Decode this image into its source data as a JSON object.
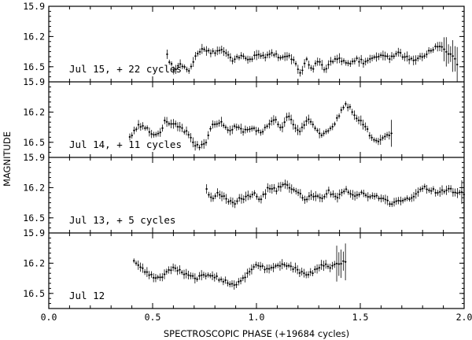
{
  "chart_data": {
    "type": "scatter",
    "xlabel": "SPECTROSCOPIC PHASE (+19684 cycles)",
    "ylabel": "MAGNITUDE",
    "xlim": [
      0.0,
      2.0
    ],
    "x_ticks": [
      "0.0",
      "0.5",
      "1.0",
      "1.5",
      "2.0"
    ],
    "ylim": [
      16.65,
      15.9
    ],
    "y_tick_labels": [
      "15.9",
      "16.2",
      "16.5"
    ],
    "y_ticks": [
      15.9,
      16.2,
      16.5
    ],
    "y_axis_inverted": true,
    "panels": [
      {
        "label": "Jul 15, + 22 cycles",
        "knots": [
          [
            0.57,
            16.39
          ],
          [
            0.6,
            16.53
          ],
          [
            0.64,
            16.47
          ],
          [
            0.67,
            16.55
          ],
          [
            0.7,
            16.42
          ],
          [
            0.74,
            16.3
          ],
          [
            0.78,
            16.36
          ],
          [
            0.83,
            16.33
          ],
          [
            0.88,
            16.43
          ],
          [
            0.93,
            16.4
          ],
          [
            0.97,
            16.43
          ],
          [
            1.0,
            16.37
          ],
          [
            1.04,
            16.4
          ],
          [
            1.08,
            16.37
          ],
          [
            1.11,
            16.41
          ],
          [
            1.15,
            16.38
          ],
          [
            1.18,
            16.44
          ],
          [
            1.21,
            16.58
          ],
          [
            1.24,
            16.43
          ],
          [
            1.27,
            16.52
          ],
          [
            1.3,
            16.42
          ],
          [
            1.33,
            16.53
          ],
          [
            1.36,
            16.44
          ],
          [
            1.4,
            16.43
          ],
          [
            1.44,
            16.48
          ],
          [
            1.48,
            16.42
          ],
          [
            1.52,
            16.46
          ],
          [
            1.56,
            16.4
          ],
          [
            1.6,
            16.38
          ],
          [
            1.64,
            16.41
          ],
          [
            1.68,
            16.36
          ],
          [
            1.72,
            16.41
          ],
          [
            1.76,
            16.44
          ],
          [
            1.8,
            16.4
          ],
          [
            1.85,
            16.32
          ],
          [
            1.88,
            16.3
          ],
          [
            1.92,
            16.36
          ],
          [
            1.95,
            16.42
          ],
          [
            1.97,
            16.48
          ]
        ],
        "step": 0.0105,
        "bad_x": [
          1.9,
          2.0
        ]
      },
      {
        "label": "Jul 14, + 11 cycles",
        "knots": [
          [
            0.39,
            16.45
          ],
          [
            0.43,
            16.34
          ],
          [
            0.47,
            16.36
          ],
          [
            0.5,
            16.42
          ],
          [
            0.53,
            16.43
          ],
          [
            0.56,
            16.28
          ],
          [
            0.6,
            16.32
          ],
          [
            0.64,
            16.37
          ],
          [
            0.67,
            16.4
          ],
          [
            0.7,
            16.52
          ],
          [
            0.73,
            16.55
          ],
          [
            0.76,
            16.48
          ],
          [
            0.79,
            16.32
          ],
          [
            0.83,
            16.31
          ],
          [
            0.87,
            16.38
          ],
          [
            0.9,
            16.34
          ],
          [
            0.94,
            16.39
          ],
          [
            0.98,
            16.36
          ],
          [
            1.02,
            16.4
          ],
          [
            1.06,
            16.32
          ],
          [
            1.09,
            16.28
          ],
          [
            1.12,
            16.38
          ],
          [
            1.15,
            16.22
          ],
          [
            1.18,
            16.33
          ],
          [
            1.21,
            16.4
          ],
          [
            1.25,
            16.26
          ],
          [
            1.28,
            16.36
          ],
          [
            1.31,
            16.43
          ],
          [
            1.35,
            16.38
          ],
          [
            1.38,
            16.3
          ],
          [
            1.41,
            16.19
          ],
          [
            1.43,
            16.12
          ],
          [
            1.46,
            16.18
          ],
          [
            1.49,
            16.27
          ],
          [
            1.52,
            16.33
          ],
          [
            1.56,
            16.47
          ],
          [
            1.6,
            16.48
          ],
          [
            1.63,
            16.43
          ],
          [
            1.66,
            16.4
          ]
        ],
        "step": 0.0105,
        "bad_x": [
          1.64,
          1.7
        ]
      },
      {
        "label": "Jul 13, + 5 cycles",
        "knots": [
          [
            0.76,
            16.22
          ],
          [
            0.79,
            16.32
          ],
          [
            0.82,
            16.25
          ],
          [
            0.86,
            16.33
          ],
          [
            0.89,
            16.36
          ],
          [
            0.92,
            16.3
          ],
          [
            0.95,
            16.3
          ],
          [
            0.99,
            16.25
          ],
          [
            1.02,
            16.32
          ],
          [
            1.06,
            16.2
          ],
          [
            1.1,
            16.22
          ],
          [
            1.13,
            16.15
          ],
          [
            1.17,
            16.2
          ],
          [
            1.2,
            16.24
          ],
          [
            1.23,
            16.33
          ],
          [
            1.27,
            16.27
          ],
          [
            1.31,
            16.3
          ],
          [
            1.35,
            16.24
          ],
          [
            1.39,
            16.29
          ],
          [
            1.43,
            16.22
          ],
          [
            1.47,
            16.3
          ],
          [
            1.51,
            16.25
          ],
          [
            1.54,
            16.3
          ],
          [
            1.58,
            16.28
          ],
          [
            1.62,
            16.33
          ],
          [
            1.66,
            16.36
          ],
          [
            1.7,
            16.32
          ],
          [
            1.73,
            16.31
          ],
          [
            1.77,
            16.27
          ],
          [
            1.8,
            16.2
          ],
          [
            1.84,
            16.22
          ],
          [
            1.88,
            16.25
          ],
          [
            1.92,
            16.22
          ],
          [
            1.96,
            16.24
          ],
          [
            2.0,
            16.26
          ]
        ],
        "step": 0.0105,
        "bad_x": [
          1.98,
          2.0
        ]
      },
      {
        "label": "Jul 12",
        "knots": [
          [
            0.41,
            16.18
          ],
          [
            0.44,
            16.24
          ],
          [
            0.48,
            16.3
          ],
          [
            0.51,
            16.35
          ],
          [
            0.55,
            16.33
          ],
          [
            0.59,
            16.25
          ],
          [
            0.63,
            16.27
          ],
          [
            0.67,
            16.32
          ],
          [
            0.71,
            16.35
          ],
          [
            0.75,
            16.31
          ],
          [
            0.8,
            16.34
          ],
          [
            0.84,
            16.37
          ],
          [
            0.88,
            16.42
          ],
          [
            0.92,
            16.38
          ],
          [
            0.96,
            16.31
          ],
          [
            1.0,
            16.22
          ],
          [
            1.04,
            16.25
          ],
          [
            1.08,
            16.24
          ],
          [
            1.12,
            16.22
          ],
          [
            1.16,
            16.23
          ],
          [
            1.2,
            16.27
          ],
          [
            1.24,
            16.32
          ],
          [
            1.28,
            16.28
          ],
          [
            1.32,
            16.22
          ],
          [
            1.36,
            16.24
          ],
          [
            1.4,
            16.2
          ],
          [
            1.43,
            16.18
          ]
        ],
        "step": 0.0105,
        "bad_x": [
          1.38,
          1.44
        ]
      }
    ]
  }
}
